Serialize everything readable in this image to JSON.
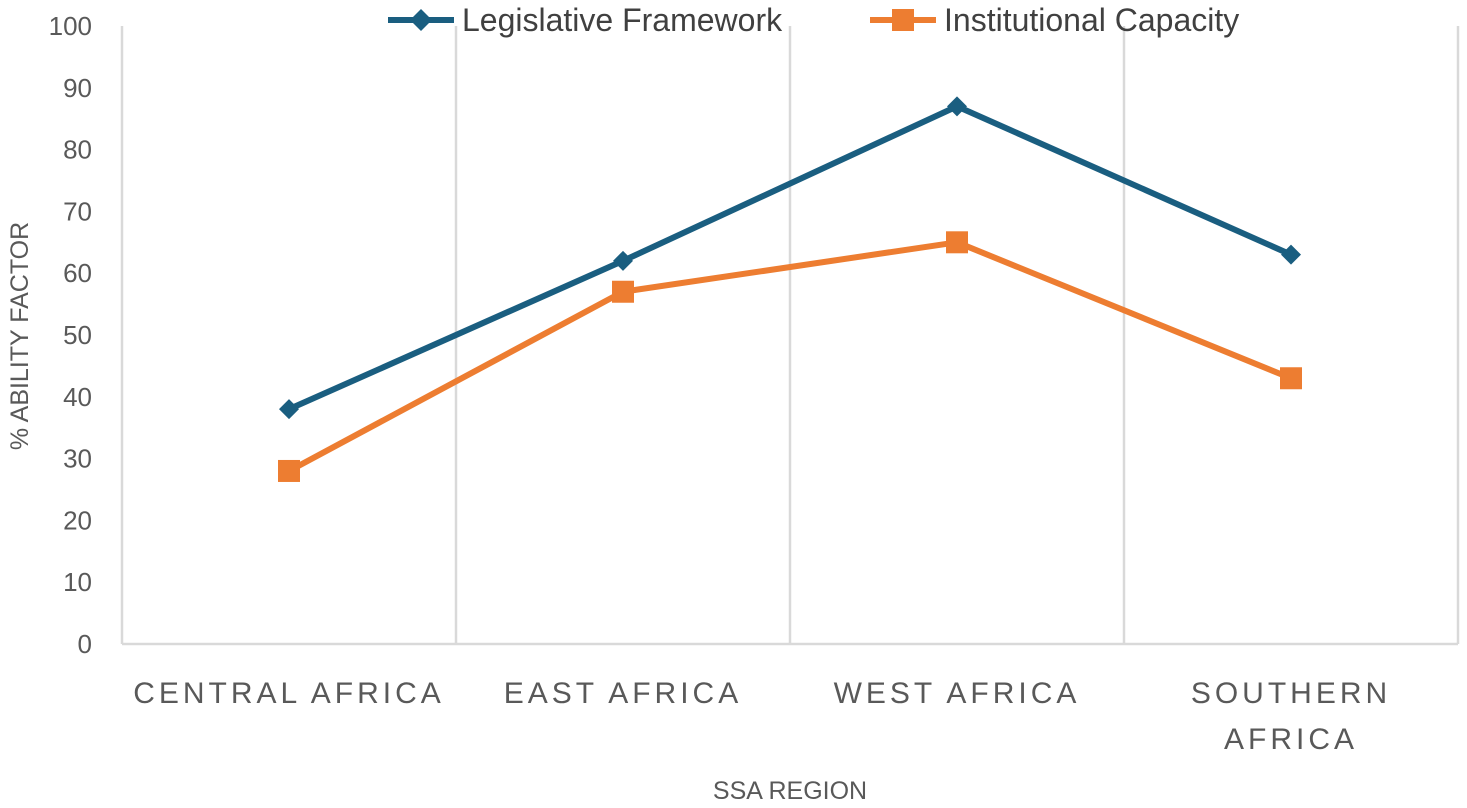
{
  "chart_data": {
    "type": "line",
    "categories": [
      "CENTRAL AFRICA",
      "EAST AFRICA",
      "WEST AFRICA",
      "SOUTHERN AFRICA"
    ],
    "category_lines": [
      [
        "CENTRAL AFRICA"
      ],
      [
        "EAST AFRICA"
      ],
      [
        "WEST AFRICA"
      ],
      [
        "SOUTHERN",
        "AFRICA"
      ]
    ],
    "series": [
      {
        "name": "Legislative Framework",
        "values": [
          38,
          62,
          87,
          63
        ],
        "color": "#1a5e80",
        "marker": "diamond"
      },
      {
        "name": "Institutional Capacity",
        "values": [
          28,
          57,
          65,
          43
        ],
        "color": "#ed7d31",
        "marker": "square"
      }
    ],
    "xlabel": "SSA REGION",
    "ylabel": "% ABILITY FACTOR",
    "ylim": [
      0,
      100
    ],
    "yticks": [
      0,
      10,
      20,
      30,
      40,
      50,
      60,
      70,
      80,
      90,
      100
    ],
    "grid": "vertical category separators",
    "legend": "top-center"
  }
}
